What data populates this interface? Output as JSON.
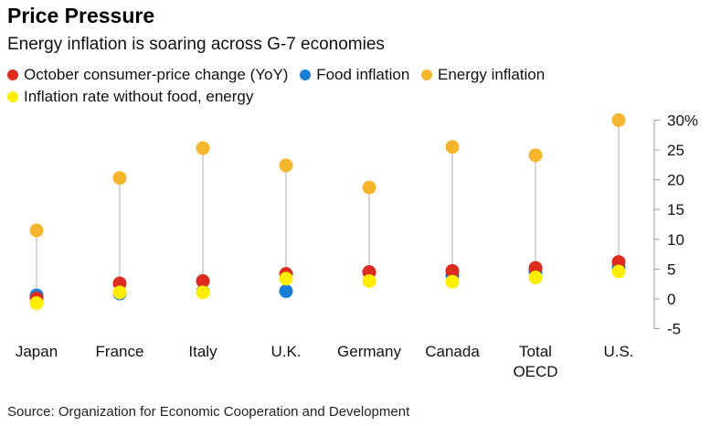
{
  "title": "Price Pressure",
  "subtitle": "Energy inflation is soaring across G-7 economies",
  "source": "Source: Organization for Economic Cooperation and Development",
  "colors": {
    "headline": "#dc2b1f",
    "food": "#1a7ed6",
    "energy": "#f5b52c",
    "core": "#ffee00",
    "stem": "#d6d6d6",
    "axis": "#999999"
  },
  "chart_data": {
    "type": "scatter",
    "categories": [
      "Japan",
      "France",
      "Italy",
      "U.K.",
      "Germany",
      "Canada",
      "Total OECD",
      "U.S."
    ],
    "series": [
      {
        "name": "October consumer-price change (YoY)",
        "color": "#dc2b1f",
        "values": [
          0.1,
          2.6,
          3.0,
          4.2,
          4.5,
          4.7,
          5.2,
          6.2
        ]
      },
      {
        "name": "Food inflation",
        "color": "#1a7ed6",
        "values": [
          0.6,
          0.9,
          1.2,
          1.3,
          4.5,
          4.0,
          4.6,
          5.3
        ]
      },
      {
        "name": "Energy inflation",
        "color": "#f5b52c",
        "values": [
          11.5,
          20.3,
          25.3,
          22.4,
          18.7,
          25.5,
          24.1,
          30.0
        ]
      },
      {
        "name": "Inflation rate without food, energy",
        "color": "#ffee00",
        "values": [
          -0.7,
          1.1,
          1.1,
          3.4,
          3.0,
          2.9,
          3.6,
          4.6
        ]
      }
    ],
    "y_ticks": [
      "30%",
      "25",
      "20",
      "15",
      "10",
      "5",
      "0",
      "-5"
    ],
    "y_tick_values": [
      30,
      25,
      20,
      15,
      10,
      5,
      0,
      -5
    ],
    "ylim": [
      -5,
      30
    ],
    "legend_position": "top",
    "grid": false
  }
}
